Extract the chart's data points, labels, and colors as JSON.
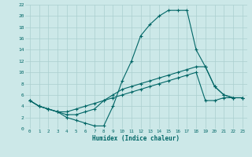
{
  "xlabel": "Humidex (Indice chaleur)",
  "bg_color": "#cce8e8",
  "grid_color": "#aacfcf",
  "line_color": "#006666",
  "xlim": [
    -0.5,
    23.5
  ],
  "ylim": [
    0,
    22
  ],
  "xticks": [
    0,
    1,
    2,
    3,
    4,
    5,
    6,
    7,
    8,
    9,
    10,
    11,
    12,
    13,
    14,
    15,
    16,
    17,
    18,
    19,
    20,
    21,
    22,
    23
  ],
  "yticks": [
    0,
    2,
    4,
    6,
    8,
    10,
    12,
    14,
    16,
    18,
    20,
    22
  ],
  "line1_x": [
    0,
    1,
    2,
    3,
    4,
    5,
    6,
    7,
    8,
    9,
    10,
    11,
    12,
    13,
    14,
    15,
    16,
    17,
    18,
    19,
    20,
    21,
    22,
    23
  ],
  "line1_y": [
    5,
    4,
    3.5,
    3,
    2,
    1.5,
    1,
    0.5,
    0.5,
    4,
    8.5,
    12,
    16.5,
    18.5,
    20,
    21,
    21,
    21,
    14,
    11,
    7.5,
    6,
    5.5,
    5.5
  ],
  "line2_x": [
    0,
    1,
    2,
    3,
    4,
    5,
    6,
    7,
    8,
    9,
    10,
    11,
    12,
    13,
    14,
    15,
    16,
    17,
    18,
    19,
    20,
    21,
    22,
    23
  ],
  "line2_y": [
    5,
    4,
    3.5,
    3,
    2.5,
    2.5,
    3,
    3.5,
    5,
    6,
    7,
    7.5,
    8,
    8.5,
    9,
    9.5,
    10,
    10.5,
    11,
    11,
    7.5,
    6,
    5.5,
    5.5
  ],
  "line3_x": [
    0,
    1,
    2,
    3,
    4,
    5,
    6,
    7,
    8,
    9,
    10,
    11,
    12,
    13,
    14,
    15,
    16,
    17,
    18,
    19,
    20,
    21,
    22,
    23
  ],
  "line3_y": [
    5,
    4,
    3.5,
    3,
    3,
    3.5,
    4,
    4.5,
    5,
    5.5,
    6,
    6.5,
    7,
    7.5,
    8,
    8.5,
    9,
    9.5,
    10,
    5,
    5,
    5.5,
    5.5,
    5.5
  ]
}
